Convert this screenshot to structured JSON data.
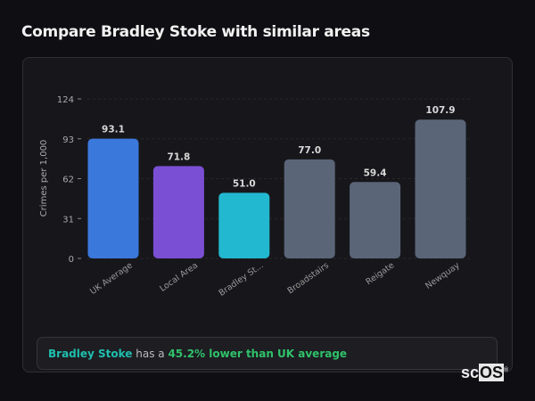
{
  "title": "Compare Bradley Stoke with similar areas",
  "chart_data": {
    "type": "bar",
    "categories": [
      "UK Average",
      "Local Area",
      "Bradley St...",
      "Broadstairs",
      "Reigate",
      "Newquay"
    ],
    "values": [
      93.1,
      71.8,
      51.0,
      77.0,
      59.4,
      107.9
    ],
    "value_labels": [
      "93.1",
      "71.8",
      "51.0",
      "77.0",
      "59.4",
      "107.9"
    ],
    "colors": [
      "#3b78dc",
      "#7b4fd4",
      "#22b8cf",
      "#5a6578",
      "#5a6578",
      "#5a6578"
    ],
    "ylabel": "Crimes per 1,000",
    "xlabel": "",
    "ylim": [
      0,
      124
    ],
    "yticks": [
      0,
      31,
      62,
      93,
      124
    ],
    "grid": true
  },
  "summary": {
    "area": "Bradley Stoke",
    "middle": " has a ",
    "comparison": "45.2% lower than UK average"
  },
  "logo": {
    "text_a": "sc",
    "text_b": "OS",
    "mark": "®"
  }
}
